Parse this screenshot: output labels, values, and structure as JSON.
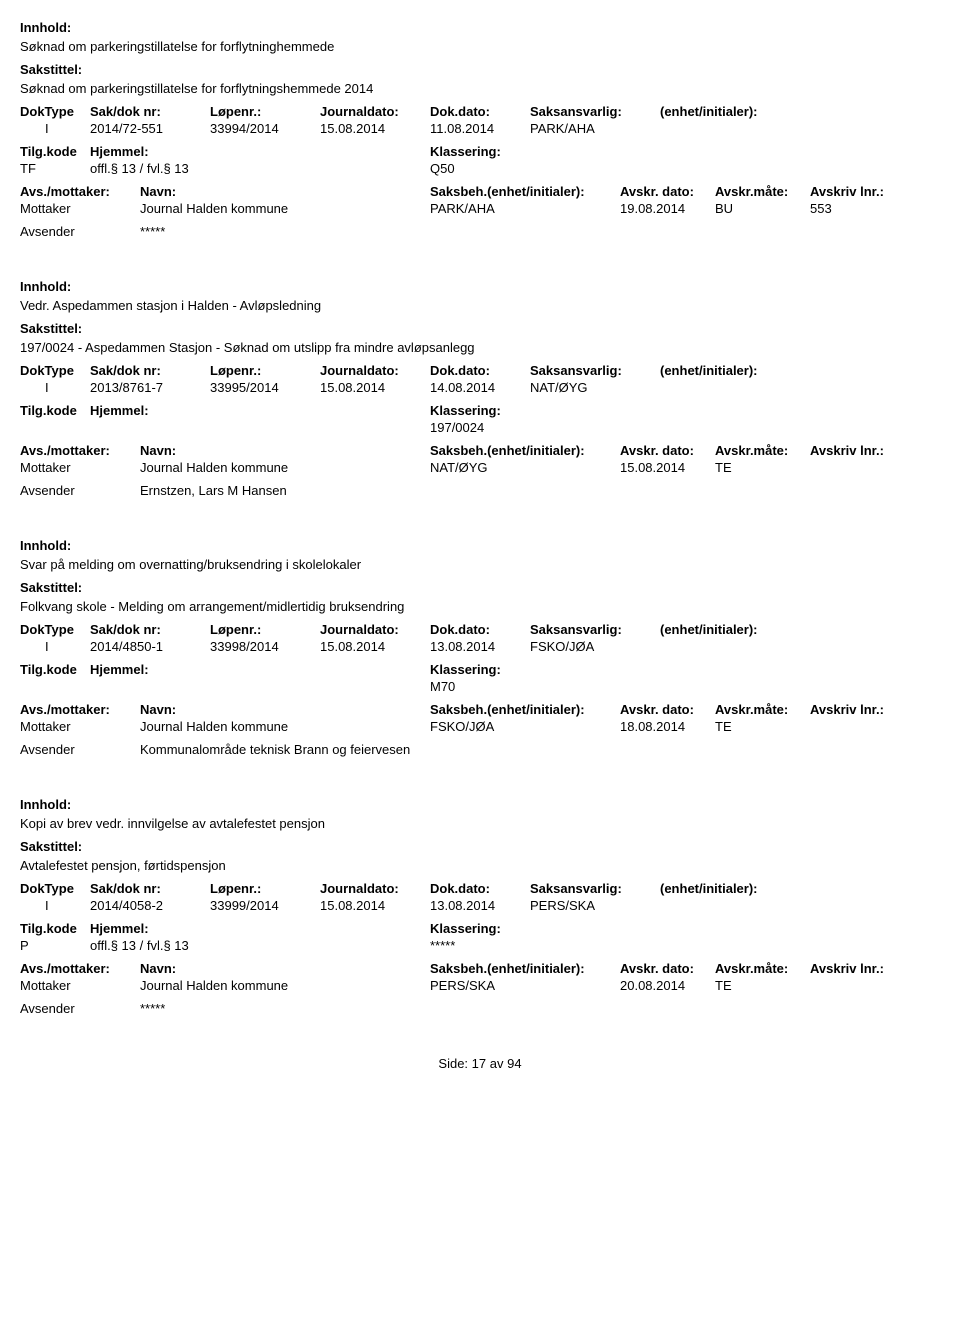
{
  "labels": {
    "innhold": "Innhold:",
    "sakstittel": "Sakstittel:",
    "doktype": "DokType",
    "saknr": "Sak/dok nr:",
    "lopenr": "Løpenr.:",
    "journaldato": "Journaldato:",
    "dokdato": "Dok.dato:",
    "saksansvarlig": "Saksansvarlig:",
    "enhet": "(enhet/initialer):",
    "tilgkode": "Tilg.kode",
    "hjemmel": "Hjemmel:",
    "klassering": "Klassering:",
    "avsmot": "Avs./mottaker:",
    "navn": "Navn:",
    "saksbeh": "Saksbeh.(enhet/initialer):",
    "avskrdato": "Avskr. dato:",
    "avskrmate": "Avskr.måte:",
    "avskrlnr": "Avskriv lnr.:",
    "mottaker": "Mottaker",
    "avsender": "Avsender"
  },
  "records": [
    {
      "innhold": "Søknad om parkeringstillatelse for forflytninghemmede",
      "sakstittel": "Søknad om parkeringstillatelse for forflytningshemmede 2014",
      "doktype": "I",
      "saknr": "2014/72-551",
      "lopenr": "33994/2014",
      "journaldato": "15.08.2014",
      "dokdato": "11.08.2014",
      "saksansvarlig": "PARK/AHA",
      "enhet": "",
      "tilgkode": "TF",
      "hjemmel": "offl.§ 13 / fvl.§ 13",
      "klassering": "Q50",
      "mottaker_navn": "Journal Halden kommune",
      "saksbeh": "PARK/AHA",
      "avskrdato": "19.08.2014",
      "avskrmate": "BU",
      "avskrlnr": "553",
      "avsender_navn": "*****"
    },
    {
      "innhold": "Vedr. Aspedammen stasjon i Halden - Avløpsledning",
      "sakstittel": "197/0024 - Aspedammen Stasjon - Søknad om utslipp fra mindre avløpsanlegg",
      "doktype": "I",
      "saknr": "2013/8761-7",
      "lopenr": "33995/2014",
      "journaldato": "15.08.2014",
      "dokdato": "14.08.2014",
      "saksansvarlig": "NAT/ØYG",
      "enhet": "",
      "tilgkode": "",
      "hjemmel": "",
      "klassering": "197/0024",
      "mottaker_navn": "Journal Halden kommune",
      "saksbeh": "NAT/ØYG",
      "avskrdato": "15.08.2014",
      "avskrmate": "TE",
      "avskrlnr": "",
      "avsender_navn": "Ernstzen, Lars M Hansen"
    },
    {
      "innhold": "Svar på melding om overnatting/bruksendring i skolelokaler",
      "sakstittel": "Folkvang skole - Melding om arrangement/midlertidig bruksendring",
      "doktype": "I",
      "saknr": "2014/4850-1",
      "lopenr": "33998/2014",
      "journaldato": "15.08.2014",
      "dokdato": "13.08.2014",
      "saksansvarlig": "FSKO/JØA",
      "enhet": "",
      "tilgkode": "",
      "hjemmel": "",
      "klassering": "M70",
      "mottaker_navn": "Journal Halden kommune",
      "saksbeh": "FSKO/JØA",
      "avskrdato": "18.08.2014",
      "avskrmate": "TE",
      "avskrlnr": "",
      "avsender_navn": "Kommunalområde teknisk Brann og feiervesen"
    },
    {
      "innhold": "Kopi av brev vedr. innvilgelse av avtalefestet pensjon",
      "sakstittel": "Avtalefestet pensjon, førtidspensjon",
      "doktype": "I",
      "saknr": "2014/4058-2",
      "lopenr": "33999/2014",
      "journaldato": "15.08.2014",
      "dokdato": "13.08.2014",
      "saksansvarlig": "PERS/SKA",
      "enhet": "",
      "tilgkode": "P",
      "hjemmel": "offl.§ 13 / fvl.§ 13",
      "klassering": "*****",
      "mottaker_navn": "Journal Halden kommune",
      "saksbeh": "PERS/SKA",
      "avskrdato": "20.08.2014",
      "avskrmate": "TE",
      "avskrlnr": "",
      "avsender_navn": "*****"
    }
  ],
  "footer": {
    "label": "Side:",
    "page": "17",
    "sep": "av",
    "total": "94"
  }
}
